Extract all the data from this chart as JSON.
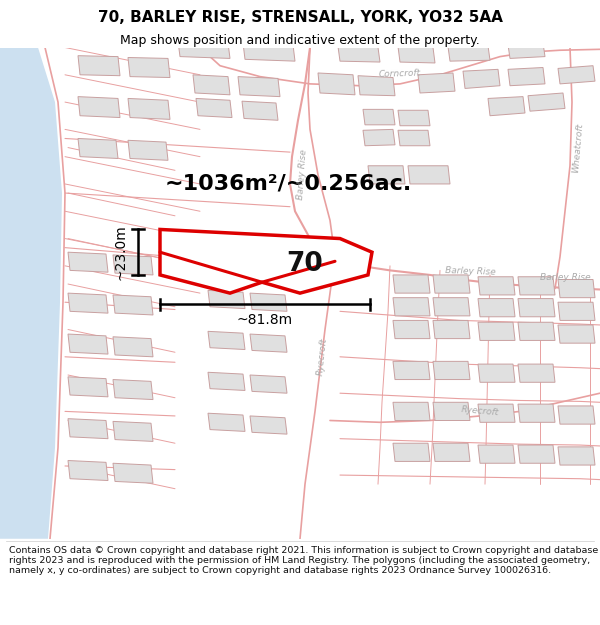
{
  "title": "70, BARLEY RISE, STRENSALL, YORK, YO32 5AA",
  "subtitle": "Map shows position and indicative extent of the property.",
  "footer": "Contains OS data © Crown copyright and database right 2021. This information is subject to Crown copyright and database rights 2023 and is reproduced with the permission of HM Land Registry. The polygons (including the associated geometry, namely x, y co-ordinates) are subject to Crown copyright and database rights 2023 Ordnance Survey 100026316.",
  "area_label": "~1036m²/~0.256ac.",
  "width_label": "~81.8m",
  "height_label": "~23.0m",
  "plot_number": "70",
  "bg_color": "#ffffff",
  "street_color": "#e8a0a0",
  "building_fill": "#e0e0e0",
  "building_edge": "#c8a0a0",
  "plot_color": "#dd0000",
  "water_color": "#cce0f0",
  "road_label_color": "#aaaaaa",
  "title_color": "#000000",
  "annotation_color": "#000000",
  "title_fontsize": 11,
  "subtitle_fontsize": 9,
  "footer_fontsize": 6.8
}
